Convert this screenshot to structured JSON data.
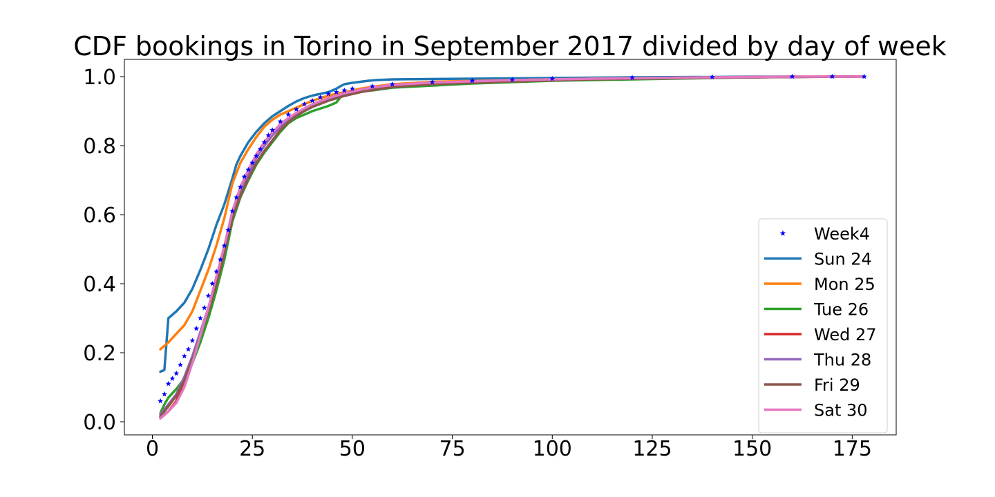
{
  "chart_data": {
    "type": "line",
    "title": "CDF bookings in Torino in September 2017 divided by day of week",
    "xlabel": "",
    "ylabel": "",
    "xlim": [
      -7,
      186
    ],
    "ylim": [
      -0.038,
      1.05
    ],
    "xticks": [
      0,
      25,
      50,
      75,
      100,
      125,
      150,
      175
    ],
    "yticks": [
      0.0,
      0.2,
      0.4,
      0.6,
      0.8,
      1.0
    ],
    "ytick_labels": [
      "0.0",
      "0.2",
      "0.4",
      "0.6",
      "0.8",
      "1.0"
    ],
    "grid": false,
    "legend_position": "lower-right",
    "series": [
      {
        "name": "Week4",
        "style": "star-markers",
        "color": "#0000ff",
        "x": [
          2,
          3,
          4,
          5,
          6,
          7,
          8,
          9,
          10,
          11,
          12,
          13,
          14,
          15,
          16,
          17,
          18,
          19,
          20,
          21,
          22,
          23,
          24,
          25,
          26,
          27,
          28,
          29,
          30,
          32,
          34,
          36,
          38,
          40,
          42,
          44,
          46,
          48,
          50,
          55,
          60,
          70,
          80,
          90,
          100,
          120,
          140,
          160,
          170,
          178
        ],
        "y": [
          0.06,
          0.08,
          0.11,
          0.125,
          0.14,
          0.165,
          0.19,
          0.21,
          0.235,
          0.27,
          0.3,
          0.33,
          0.365,
          0.4,
          0.435,
          0.47,
          0.51,
          0.555,
          0.61,
          0.65,
          0.68,
          0.71,
          0.73,
          0.75,
          0.77,
          0.79,
          0.81,
          0.83,
          0.845,
          0.87,
          0.89,
          0.905,
          0.92,
          0.93,
          0.94,
          0.95,
          0.955,
          0.96,
          0.965,
          0.972,
          0.978,
          0.984,
          0.988,
          0.991,
          0.994,
          0.997,
          0.999,
          1.0,
          1.0,
          1.0
        ]
      },
      {
        "name": "Sun 24",
        "color": "#1f77b4",
        "x": [
          2,
          3,
          4,
          6,
          8,
          10,
          12,
          14,
          16,
          18,
          20,
          21,
          22,
          24,
          26,
          28,
          30,
          32,
          34,
          36,
          38,
          40,
          42,
          44,
          46,
          47,
          48,
          50,
          52,
          54,
          56,
          60,
          80,
          100,
          120,
          140,
          150,
          162
        ],
        "y": [
          0.145,
          0.15,
          0.3,
          0.32,
          0.345,
          0.385,
          0.44,
          0.5,
          0.57,
          0.63,
          0.705,
          0.745,
          0.77,
          0.81,
          0.84,
          0.865,
          0.885,
          0.9,
          0.915,
          0.928,
          0.938,
          0.945,
          0.95,
          0.955,
          0.965,
          0.972,
          0.978,
          0.982,
          0.985,
          0.988,
          0.99,
          0.992,
          0.994,
          0.996,
          0.998,
          0.999,
          1.0,
          1.0
        ]
      },
      {
        "name": "Mon 25",
        "color": "#ff7f0e",
        "x": [
          2,
          4,
          6,
          8,
          10,
          12,
          14,
          16,
          18,
          20,
          22,
          24,
          26,
          28,
          30,
          32,
          34,
          36,
          38,
          40,
          44,
          48,
          52,
          56,
          60,
          70,
          90,
          110,
          140,
          160,
          175,
          178
        ],
        "y": [
          0.21,
          0.23,
          0.255,
          0.28,
          0.32,
          0.38,
          0.44,
          0.51,
          0.59,
          0.69,
          0.75,
          0.79,
          0.825,
          0.855,
          0.875,
          0.89,
          0.9,
          0.91,
          0.92,
          0.93,
          0.945,
          0.955,
          0.965,
          0.972,
          0.978,
          0.985,
          0.99,
          0.994,
          0.998,
          1.0,
          1.0,
          1.0
        ]
      },
      {
        "name": "Tue 26",
        "color": "#2ca02c",
        "x": [
          2,
          3,
          4,
          6,
          8,
          10,
          12,
          14,
          16,
          18,
          20,
          22,
          24,
          26,
          28,
          30,
          32,
          34,
          36,
          38,
          40,
          44,
          46,
          47,
          48,
          50,
          55,
          60,
          80,
          100,
          130,
          150,
          170,
          178
        ],
        "y": [
          0.025,
          0.05,
          0.07,
          0.095,
          0.125,
          0.17,
          0.23,
          0.3,
          0.38,
          0.47,
          0.58,
          0.65,
          0.7,
          0.745,
          0.78,
          0.81,
          0.84,
          0.865,
          0.88,
          0.89,
          0.9,
          0.915,
          0.925,
          0.94,
          0.95,
          0.955,
          0.96,
          0.968,
          0.98,
          0.988,
          0.994,
          0.998,
          1.0,
          1.0
        ]
      },
      {
        "name": "Wed 27",
        "color": "#d62728",
        "x": [
          2,
          3,
          4,
          6,
          8,
          10,
          12,
          14,
          16,
          18,
          20,
          22,
          24,
          26,
          28,
          30,
          32,
          34,
          36,
          38,
          40,
          44,
          48,
          52,
          56,
          60,
          70,
          90,
          110,
          140,
          160,
          170,
          177
        ],
        "y": [
          0.01,
          0.02,
          0.03,
          0.06,
          0.12,
          0.18,
          0.25,
          0.32,
          0.4,
          0.49,
          0.6,
          0.67,
          0.72,
          0.765,
          0.8,
          0.83,
          0.855,
          0.875,
          0.89,
          0.905,
          0.918,
          0.935,
          0.948,
          0.958,
          0.966,
          0.972,
          0.98,
          0.988,
          0.993,
          0.997,
          0.999,
          1.0,
          1.0
        ]
      },
      {
        "name": "Thu 28",
        "color": "#9467bd",
        "x": [
          2,
          3,
          4,
          6,
          8,
          10,
          12,
          14,
          16,
          18,
          20,
          22,
          24,
          26,
          28,
          30,
          32,
          34,
          36,
          38,
          40,
          44,
          48,
          52,
          56,
          60,
          70,
          90,
          110,
          140,
          160,
          175
        ],
        "y": [
          0.02,
          0.035,
          0.05,
          0.08,
          0.13,
          0.19,
          0.26,
          0.33,
          0.41,
          0.5,
          0.6,
          0.67,
          0.72,
          0.765,
          0.8,
          0.83,
          0.855,
          0.875,
          0.89,
          0.905,
          0.918,
          0.935,
          0.948,
          0.958,
          0.966,
          0.972,
          0.98,
          0.988,
          0.993,
          0.997,
          0.999,
          1.0
        ]
      },
      {
        "name": "Fri 29",
        "color": "#8c564b",
        "x": [
          2,
          3,
          4,
          6,
          8,
          10,
          12,
          14,
          16,
          18,
          20,
          22,
          24,
          26,
          28,
          30,
          32,
          34,
          36,
          38,
          40,
          44,
          48,
          52,
          56,
          60,
          70,
          90,
          110,
          140,
          160,
          176
        ],
        "y": [
          0.015,
          0.03,
          0.045,
          0.075,
          0.12,
          0.18,
          0.25,
          0.32,
          0.4,
          0.49,
          0.59,
          0.655,
          0.705,
          0.75,
          0.785,
          0.815,
          0.845,
          0.868,
          0.886,
          0.9,
          0.912,
          0.93,
          0.944,
          0.955,
          0.963,
          0.97,
          0.978,
          0.986,
          0.992,
          0.997,
          0.999,
          1.0
        ]
      },
      {
        "name": "Sat 30",
        "color": "#e377c2",
        "x": [
          2,
          3,
          4,
          6,
          8,
          10,
          12,
          14,
          16,
          18,
          20,
          22,
          24,
          26,
          28,
          30,
          32,
          34,
          36,
          38,
          40,
          44,
          48,
          52,
          56,
          60,
          70,
          90,
          110,
          140,
          160,
          178
        ],
        "y": [
          0.01,
          0.02,
          0.03,
          0.055,
          0.1,
          0.17,
          0.25,
          0.33,
          0.42,
          0.51,
          0.61,
          0.68,
          0.73,
          0.775,
          0.81,
          0.838,
          0.862,
          0.88,
          0.895,
          0.908,
          0.92,
          0.938,
          0.952,
          0.962,
          0.97,
          0.976,
          0.983,
          0.99,
          0.994,
          0.998,
          1.0,
          1.0
        ]
      }
    ]
  }
}
